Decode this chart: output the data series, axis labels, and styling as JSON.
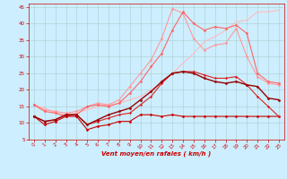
{
  "xlabel": "Vent moyen/en rafales ( km/h )",
  "background_color": "#cceeff",
  "grid_color": "#aacccc",
  "xlim": [
    -0.5,
    23.5
  ],
  "ylim": [
    5,
    46
  ],
  "yticks": [
    5,
    10,
    15,
    20,
    25,
    30,
    35,
    40,
    45
  ],
  "xticks": [
    0,
    1,
    2,
    3,
    4,
    5,
    6,
    7,
    8,
    9,
    10,
    11,
    12,
    13,
    14,
    15,
    16,
    17,
    18,
    19,
    20,
    21,
    22,
    23
  ],
  "series": [
    {
      "x": [
        0,
        1,
        2,
        3,
        4,
        5,
        6,
        7,
        8,
        9,
        10,
        11,
        12,
        13,
        14,
        15,
        16,
        17,
        18,
        19,
        20,
        21,
        22,
        23
      ],
      "y": [
        15.5,
        14.5,
        13.0,
        12.5,
        13.0,
        14.0,
        15.0,
        15.5,
        16.0,
        17.0,
        18.0,
        20.0,
        22.0,
        25.0,
        28.0,
        31.0,
        34.5,
        36.0,
        38.0,
        40.5,
        41.0,
        43.5,
        43.5,
        44.0
      ],
      "color": "#ffbbbb",
      "linewidth": 0.8,
      "marker": null,
      "markersize": 0
    },
    {
      "x": [
        0,
        1,
        2,
        3,
        4,
        5,
        6,
        7,
        8,
        9,
        10,
        11,
        12,
        13,
        14,
        15,
        16,
        17,
        18,
        19,
        20,
        21,
        22,
        23
      ],
      "y": [
        15.5,
        14.0,
        13.5,
        13.0,
        13.5,
        15.0,
        16.0,
        15.5,
        17.0,
        21.0,
        25.0,
        29.0,
        35.5,
        44.5,
        43.0,
        35.5,
        32.0,
        33.5,
        34.0,
        38.5,
        30.0,
        24.0,
        22.0,
        21.5
      ],
      "color": "#ff9999",
      "linewidth": 0.8,
      "marker": "D",
      "markersize": 1.5
    },
    {
      "x": [
        0,
        1,
        2,
        3,
        4,
        5,
        6,
        7,
        8,
        9,
        10,
        11,
        12,
        13,
        14,
        15,
        16,
        17,
        18,
        19,
        20,
        21,
        22,
        23
      ],
      "y": [
        15.5,
        13.5,
        13.0,
        12.0,
        12.5,
        15.0,
        15.5,
        15.0,
        16.0,
        19.0,
        22.5,
        27.0,
        31.0,
        38.0,
        43.5,
        40.0,
        38.0,
        39.0,
        38.5,
        39.5,
        37.0,
        25.0,
        22.5,
        22.0
      ],
      "color": "#ff6666",
      "linewidth": 0.8,
      "marker": "D",
      "markersize": 1.5
    },
    {
      "x": [
        0,
        1,
        2,
        3,
        4,
        5,
        6,
        7,
        8,
        9,
        10,
        11,
        12,
        13,
        14,
        15,
        16,
        17,
        18,
        19,
        20,
        21,
        22,
        23
      ],
      "y": [
        12.0,
        9.5,
        10.5,
        12.0,
        12.0,
        8.0,
        9.0,
        9.5,
        10.5,
        10.5,
        12.5,
        12.5,
        12.0,
        12.5,
        12.0,
        12.0,
        12.0,
        12.0,
        12.0,
        12.0,
        12.0,
        12.0,
        12.0,
        12.0
      ],
      "color": "#cc0000",
      "linewidth": 0.8,
      "marker": "D",
      "markersize": 1.5
    },
    {
      "x": [
        0,
        1,
        2,
        3,
        4,
        5,
        6,
        7,
        8,
        9,
        10,
        11,
        12,
        13,
        14,
        15,
        16,
        17,
        18,
        19,
        20,
        21,
        22,
        23
      ],
      "y": [
        12.0,
        10.5,
        11.0,
        12.5,
        12.5,
        9.5,
        10.5,
        11.5,
        12.5,
        13.0,
        15.5,
        18.0,
        22.0,
        25.0,
        25.5,
        25.5,
        24.5,
        23.5,
        23.5,
        24.0,
        21.5,
        18.0,
        15.0,
        12.0
      ],
      "color": "#dd2222",
      "linewidth": 0.8,
      "marker": "P",
      "markersize": 1.8
    },
    {
      "x": [
        0,
        1,
        2,
        3,
        4,
        5,
        6,
        7,
        8,
        9,
        10,
        11,
        12,
        13,
        14,
        15,
        16,
        17,
        18,
        19,
        20,
        21,
        22,
        23
      ],
      "y": [
        12.0,
        10.5,
        11.0,
        12.5,
        12.5,
        9.5,
        11.0,
        12.5,
        13.5,
        14.5,
        17.0,
        19.5,
        22.5,
        25.0,
        25.5,
        25.0,
        23.5,
        22.5,
        22.0,
        22.5,
        21.5,
        21.0,
        17.5,
        17.0
      ],
      "color": "#990000",
      "linewidth": 1.0,
      "marker": "D",
      "markersize": 1.5
    }
  ]
}
